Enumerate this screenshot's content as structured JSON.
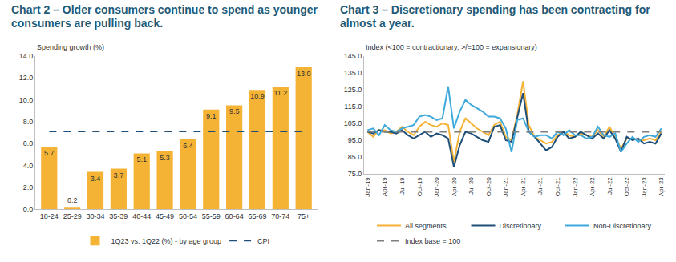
{
  "chart_data": [
    {
      "type": "bar",
      "title": "Chart 2 – Older consumers continue to spend as younger consumers are pulling back.",
      "y_label": "Spending growth (%)",
      "categories": [
        "18-24",
        "25-29",
        "30-34",
        "35-39",
        "40-44",
        "45-49",
        "50-54",
        "55-59",
        "60-64",
        "65-69",
        "70-74",
        "75+"
      ],
      "series": [
        {
          "name": "1Q23 vs. 1Q22 (%) - by age group",
          "type": "bar",
          "color": "#f5b335",
          "values": [
            5.7,
            0.2,
            3.4,
            3.7,
            5.1,
            5.3,
            6.4,
            9.1,
            9.5,
            10.9,
            11.2,
            13.0
          ],
          "value_labels": [
            "5.7",
            "0.2",
            "3.4",
            "3.7",
            "5.1",
            "5.3",
            "6.4",
            "9.1",
            "9.5",
            "10.9",
            "11.2",
            "13.0"
          ]
        },
        {
          "name": "CPI",
          "type": "line",
          "color": "#1f4e79",
          "line_style": "dashed",
          "values": [
            7.1,
            7.1,
            7.1,
            7.1,
            7.1,
            7.1,
            7.1,
            7.1,
            7.1,
            7.1,
            7.1,
            7.1
          ]
        }
      ],
      "ylim": [
        0,
        14
      ],
      "yticks": [
        {
          "value": 0,
          "label": "0.0"
        },
        {
          "value": 2,
          "label": "2.0"
        },
        {
          "value": 4,
          "label": "4.0"
        },
        {
          "value": 6,
          "label": "6.0"
        },
        {
          "value": 8,
          "label": "8.0"
        },
        {
          "value": 10,
          "label": "10.0"
        },
        {
          "value": 12,
          "label": "12.0"
        },
        {
          "value": 14,
          "label": "14.0"
        }
      ],
      "data_labels": true,
      "grid": false,
      "legend": "bottom"
    },
    {
      "type": "line",
      "title": "Chart 3 – Discretionary spending has been contracting for almost a year.",
      "y_label": "Index (<100 = contractionary, >/=100 = expansionary)",
      "categories": [
        "Jan-19",
        null,
        null,
        "Apr-19",
        null,
        null,
        "Jul-19",
        null,
        null,
        "Oct-19",
        null,
        null,
        "Jan-20",
        null,
        null,
        "Apr-20",
        null,
        null,
        "Jul-20",
        null,
        null,
        "Oct-20",
        null,
        null,
        "Jan-21",
        null,
        null,
        "Apr-21",
        null,
        null,
        "Jul-21",
        null,
        null,
        "Oct-21",
        null,
        null,
        "Jan-22",
        null,
        null,
        "Apr-22",
        null,
        null,
        "Jul-22",
        null,
        null,
        "Oct-22",
        null,
        null,
        "Jan-23",
        null,
        null,
        "Apr-23"
      ],
      "series": [
        {
          "name": "All segments",
          "color": "#f5b335",
          "line_style": "solid",
          "values": [
            100,
            97,
            101,
            101,
            99,
            100,
            103,
            100,
            98,
            103,
            106,
            104,
            103,
            105,
            104,
            82,
            100,
            108,
            105,
            102,
            100,
            98,
            104,
            106,
            97,
            95,
            110,
            130,
            104,
            97,
            95,
            93,
            94,
            98,
            100,
            98,
            97,
            99,
            98,
            97,
            101,
            97,
            103,
            97,
            90,
            96,
            96,
            95,
            95,
            96,
            95,
            100
          ]
        },
        {
          "name": "Discretionary",
          "color": "#1f4e79",
          "line_style": "solid",
          "values": [
            100,
            99,
            101,
            100,
            100,
            99,
            101,
            98,
            96,
            98,
            100,
            97,
            99,
            98,
            96,
            79,
            92,
            100,
            99,
            97,
            95,
            94,
            103,
            104,
            95,
            94,
            108,
            123,
            100,
            97,
            93,
            89,
            91,
            97,
            100,
            96,
            97,
            100,
            98,
            96,
            99,
            96,
            101,
            96,
            88,
            97,
            95,
            96,
            93,
            94,
            93,
            99
          ]
        },
        {
          "name": "Non-Discretionary",
          "color": "#3fa9dc",
          "line_style": "solid",
          "values": [
            101,
            102,
            98,
            104,
            101,
            100,
            102,
            103,
            104,
            109,
            110,
            109,
            107,
            108,
            127,
            102,
            112,
            119,
            116,
            114,
            112,
            109,
            109,
            108,
            102,
            88,
            107,
            108,
            100,
            97,
            98,
            98,
            96,
            100,
            98,
            101,
            98,
            98,
            96,
            97,
            103,
            98,
            97,
            99,
            88,
            93,
            97,
            94,
            97,
            98,
            97,
            102
          ]
        },
        {
          "name": "Index base = 100",
          "color": "#7f7f7f",
          "line_style": "dashed",
          "values": [
            100,
            100,
            100,
            100,
            100,
            100,
            100,
            100,
            100,
            100,
            100,
            100,
            100,
            100,
            100,
            100,
            100,
            100,
            100,
            100,
            100,
            100,
            100,
            100,
            100,
            100,
            100,
            100,
            100,
            100,
            100,
            100,
            100,
            100,
            100,
            100,
            100,
            100,
            100,
            100,
            100,
            100,
            100,
            100,
            100,
            100,
            100,
            100,
            100,
            100,
            100,
            100
          ]
        }
      ],
      "ylim": [
        75,
        145
      ],
      "yticks": [
        {
          "value": 75,
          "label": "75.0"
        },
        {
          "value": 85,
          "label": "85.0"
        },
        {
          "value": 95,
          "label": "95.0"
        },
        {
          "value": 105,
          "label": "105.0"
        },
        {
          "value": 115,
          "label": "115.0"
        },
        {
          "value": 125,
          "label": "125.0"
        },
        {
          "value": 135,
          "label": "135.0"
        },
        {
          "value": 145,
          "label": "145.0"
        }
      ],
      "grid": false,
      "legend": "bottom"
    }
  ]
}
